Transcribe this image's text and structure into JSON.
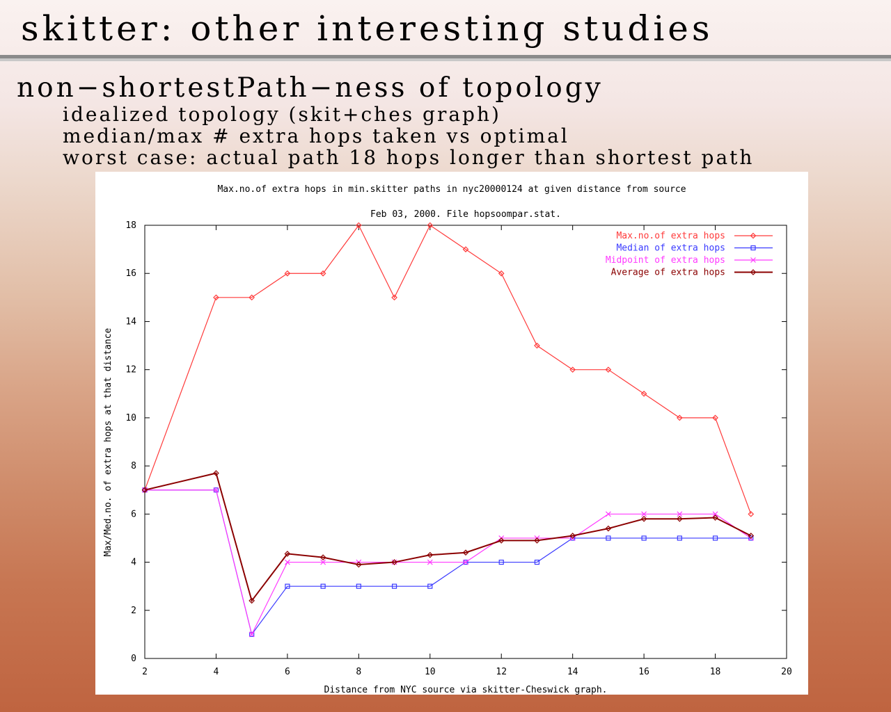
{
  "slide": {
    "title": "skitter: other interesting studies",
    "heading": "non−shortestPath−ness of topology",
    "bullets": [
      "idealized topology (skit+ches graph)",
      "median/max # extra hops taken vs optimal",
      "worst case: actual path 18 hops longer than shortest path"
    ]
  },
  "chart_data": {
    "type": "line",
    "title": "Max.no.of extra hops in min.skitter paths in nyc20000124 at given distance from source",
    "subtitle": "Feb 03, 2000. File hopsoompar.stat.",
    "xlabel": "Distance from NYC source via skitter-Cheswick graph.",
    "ylabel": "Max/Med.no. of extra hops at that distance",
    "xlim": [
      2,
      20
    ],
    "ylim": [
      0,
      18
    ],
    "xticks": [
      "2",
      "4",
      "6",
      "8",
      "10",
      "12",
      "14",
      "16",
      "18",
      "20"
    ],
    "yticks": [
      "0",
      "2",
      "4",
      "6",
      "8",
      "10",
      "12",
      "14",
      "16",
      "18"
    ],
    "legend_position": "top-right",
    "grid": false,
    "series": [
      {
        "name": "Max.no.of extra hops",
        "color": "#ff3a3a",
        "marker": "diamond",
        "points": [
          [
            2,
            7
          ],
          [
            4,
            15
          ],
          [
            5,
            15
          ],
          [
            6,
            16
          ],
          [
            7,
            16
          ],
          [
            8,
            18
          ],
          [
            9,
            15
          ],
          [
            10,
            18
          ],
          [
            11,
            17
          ],
          [
            12,
            16
          ],
          [
            13,
            13
          ],
          [
            14,
            12
          ],
          [
            15,
            12
          ],
          [
            16,
            11
          ],
          [
            17,
            10
          ],
          [
            18,
            10
          ],
          [
            19,
            6
          ]
        ]
      },
      {
        "name": "Median of extra hops",
        "color": "#3a3aff",
        "marker": "square",
        "points": [
          [
            2,
            7
          ],
          [
            4,
            7
          ],
          [
            5,
            1
          ],
          [
            6,
            3
          ],
          [
            7,
            3
          ],
          [
            8,
            3
          ],
          [
            9,
            3
          ],
          [
            10,
            3
          ],
          [
            11,
            4
          ],
          [
            12,
            4
          ],
          [
            13,
            4
          ],
          [
            14,
            5
          ],
          [
            15,
            5
          ],
          [
            16,
            5
          ],
          [
            17,
            5
          ],
          [
            18,
            5
          ],
          [
            19,
            5
          ]
        ]
      },
      {
        "name": "Midpoint of extra hops",
        "color": "#ff3aff",
        "marker": "x",
        "points": [
          [
            2,
            7
          ],
          [
            4,
            7
          ],
          [
            5,
            1
          ],
          [
            6,
            4
          ],
          [
            7,
            4
          ],
          [
            8,
            4
          ],
          [
            9,
            4
          ],
          [
            10,
            4
          ],
          [
            11,
            4
          ],
          [
            12,
            5
          ],
          [
            13,
            5
          ],
          [
            14,
            5
          ],
          [
            15,
            6
          ],
          [
            16,
            6
          ],
          [
            17,
            6
          ],
          [
            18,
            6
          ],
          [
            19,
            5
          ]
        ]
      },
      {
        "name": "Average of extra hops",
        "color": "#8b0000",
        "marker": "diamond",
        "points": [
          [
            2,
            7
          ],
          [
            4,
            7.7
          ],
          [
            5,
            2.4
          ],
          [
            6,
            4.35
          ],
          [
            7,
            4.2
          ],
          [
            8,
            3.9
          ],
          [
            9,
            4
          ],
          [
            10,
            4.3
          ],
          [
            11,
            4.4
          ],
          [
            12,
            4.9
          ],
          [
            13,
            4.9
          ],
          [
            14,
            5.1
          ],
          [
            15,
            5.4
          ],
          [
            16,
            5.8
          ],
          [
            17,
            5.8
          ],
          [
            18,
            5.85
          ],
          [
            19,
            5.1
          ]
        ]
      }
    ]
  }
}
